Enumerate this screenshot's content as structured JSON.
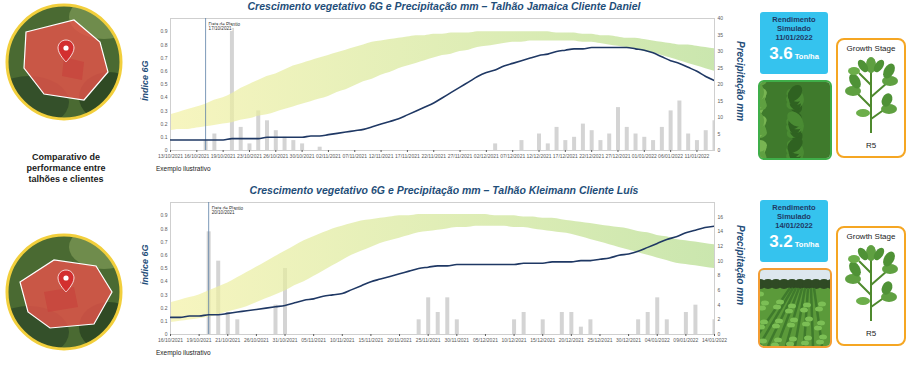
{
  "chart_data": [
    {
      "type": "line",
      "title": "Crescimento vegetativo 6G e Precipitação mm – Talhão Jamaica Cliente Daniel",
      "y_label": "Índice 6G",
      "y2_label": "Precipitação mm",
      "caption": "Exemplo ilustrativo",
      "grid": false,
      "categories": [
        "13/10/2021",
        null,
        null,
        "16/10/2021",
        null,
        null,
        "19/10/2021",
        null,
        null,
        "23/10/2021",
        null,
        null,
        "26/10/2021",
        null,
        null,
        "30/10/2021",
        null,
        null,
        "02/11/2021",
        null,
        null,
        "07/11/2021",
        null,
        null,
        "12/11/2021",
        null,
        null,
        "17/11/2021",
        null,
        null,
        "22/11/2021",
        null,
        null,
        "27/11/2021",
        null,
        null,
        "02/12/2021",
        null,
        null,
        "07/12/2021",
        null,
        null,
        "12/12/2021",
        null,
        null,
        "17/12/2021",
        null,
        null,
        "22/12/2021",
        null,
        null,
        "27/12/2021",
        null,
        null,
        "01/01/2022",
        null,
        null,
        "06/01/2022",
        null,
        null,
        "11/01/2022",
        null,
        null
      ],
      "ylim": [
        0,
        1
      ],
      "yticks": [
        0,
        0.1,
        0.2,
        0.3,
        0.4,
        0.5,
        0.6,
        0.7,
        0.8,
        0.9
      ],
      "y2lim": [
        0,
        40
      ],
      "y2ticks": [
        0,
        5,
        10,
        15,
        20,
        25,
        30,
        35,
        40
      ],
      "annotations": [
        {
          "text": "Data de Plantio",
          "date": "17/10/2021",
          "position": 4
        }
      ],
      "series": [
        {
          "type": "area",
          "color": "#b4dc8c",
          "lower": [
            0.15,
            0.16,
            0.16,
            0.17,
            0.18,
            0.19,
            0.2,
            0.21,
            0.23,
            0.24,
            0.26,
            0.27,
            0.29,
            0.31,
            0.33,
            0.35,
            0.37,
            0.39,
            0.41,
            0.44,
            0.46,
            0.49,
            0.52,
            0.54,
            0.57,
            0.59,
            0.62,
            0.64,
            0.66,
            0.68,
            0.7,
            0.72,
            0.73,
            0.75,
            0.76,
            0.78,
            0.79,
            0.8,
            0.81,
            0.82,
            0.82,
            0.83,
            0.83,
            0.83,
            0.83,
            0.83,
            0.83,
            0.82,
            0.82,
            0.81,
            0.8,
            0.79,
            0.78,
            0.77,
            0.75,
            0.74,
            0.72,
            0.7,
            0.68,
            0.66,
            0.64,
            0.62,
            0.6
          ],
          "upper": [
            0.27,
            0.29,
            0.31,
            0.33,
            0.35,
            0.38,
            0.4,
            0.43,
            0.47,
            0.5,
            0.53,
            0.56,
            0.58,
            0.61,
            0.64,
            0.66,
            0.68,
            0.7,
            0.72,
            0.74,
            0.76,
            0.78,
            0.8,
            0.82,
            0.83,
            0.84,
            0.85,
            0.86,
            0.87,
            0.87,
            0.88,
            0.88,
            0.89,
            0.89,
            0.89,
            0.9,
            0.9,
            0.9,
            0.9,
            0.9,
            0.9,
            0.9,
            0.9,
            0.9,
            0.89,
            0.89,
            0.89,
            0.88,
            0.88,
            0.87,
            0.87,
            0.86,
            0.85,
            0.85,
            0.84,
            0.83,
            0.82,
            0.81,
            0.8,
            0.8,
            0.79,
            0.78,
            0.77
          ]
        },
        {
          "type": "line",
          "color": "#1f3864",
          "values": [
            0.08,
            0.08,
            0.08,
            0.08,
            0.08,
            0.08,
            0.08,
            0.09,
            0.09,
            0.09,
            0.09,
            0.1,
            0.1,
            0.1,
            0.1,
            0.1,
            0.11,
            0.11,
            0.12,
            0.13,
            0.14,
            0.15,
            0.16,
            0.18,
            0.2,
            0.22,
            0.24,
            0.27,
            0.3,
            0.33,
            0.36,
            0.4,
            0.44,
            0.48,
            0.52,
            0.56,
            0.59,
            0.61,
            0.64,
            0.66,
            0.68,
            0.7,
            0.72,
            0.73,
            0.75,
            0.76,
            0.77,
            0.77,
            0.78,
            0.78,
            0.78,
            0.78,
            0.78,
            0.77,
            0.76,
            0.74,
            0.71,
            0.68,
            0.66,
            0.63,
            0.6,
            0.56,
            0.53
          ]
        },
        {
          "type": "bar",
          "axis": "y2",
          "color": "#d4d4d4",
          "values": [
            0,
            0,
            0,
            0,
            3,
            5,
            0,
            37,
            7,
            2,
            12,
            9,
            6,
            4,
            3,
            2,
            0,
            1,
            0,
            0,
            0,
            0,
            0,
            0,
            0,
            0,
            0,
            0,
            0,
            0,
            0,
            0,
            0,
            0,
            0,
            0,
            0,
            2,
            0,
            0,
            3,
            0,
            5,
            2,
            7,
            3,
            4,
            8,
            6,
            3,
            5,
            13,
            7,
            5,
            4,
            3,
            7,
            12,
            15,
            5,
            3,
            6,
            9
          ]
        }
      ]
    },
    {
      "type": "line",
      "title": "Crescimento vegetativo 6G e Precipitação mm – Talhão Kleimann Cliente Luís",
      "y_label": "Índice 6G",
      "y2_label": "Precipitação mm",
      "caption": "Exemplo ilustrativo",
      "grid": false,
      "categories": [
        "16/10/2021",
        null,
        null,
        "19/10/2021",
        null,
        null,
        "21/10/2021",
        null,
        null,
        "26/10/2021",
        null,
        null,
        "31/10/2021",
        null,
        null,
        "05/11/2021",
        null,
        null,
        "10/11/2021",
        null,
        null,
        "15/11/2021",
        null,
        null,
        "20/11/2021",
        null,
        null,
        "25/11/2021",
        null,
        null,
        "30/11/2021",
        null,
        null,
        "05/12/2021",
        null,
        null,
        "10/12/2021",
        null,
        null,
        "15/12/2021",
        null,
        null,
        "20/12/2021",
        null,
        null,
        "25/12/2021",
        null,
        null,
        "30/12/2021",
        null,
        null,
        "04/01/2022",
        null,
        null,
        "09/01/2022",
        null,
        null,
        "14/01/2022"
      ],
      "ylim": [
        0,
        1
      ],
      "yticks": [
        0,
        0.1,
        0.2,
        0.3,
        0.4,
        0.5,
        0.6,
        0.7,
        0.8,
        0.9
      ],
      "y2lim": [
        0,
        18
      ],
      "y2ticks": [
        0,
        2,
        4,
        6,
        8,
        10,
        12,
        14,
        16
      ],
      "annotations": [
        {
          "text": "Data de Plantio",
          "date": "20/10/2021",
          "position": 4
        }
      ],
      "series": [
        {
          "type": "area",
          "color": "#b4dc8c",
          "lower": [
            0.09,
            0.1,
            0.11,
            0.12,
            0.13,
            0.15,
            0.17,
            0.19,
            0.21,
            0.24,
            0.27,
            0.3,
            0.33,
            0.37,
            0.4,
            0.44,
            0.48,
            0.52,
            0.56,
            0.6,
            0.63,
            0.66,
            0.69,
            0.71,
            0.73,
            0.75,
            0.77,
            0.78,
            0.79,
            0.8,
            0.81,
            0.81,
            0.82,
            0.82,
            0.82,
            0.82,
            0.81,
            0.81,
            0.8,
            0.79,
            0.78,
            0.77,
            0.76,
            0.74,
            0.72,
            0.7,
            0.68,
            0.66,
            0.64,
            0.62,
            0.6,
            0.58,
            0.56,
            0.54,
            0.53,
            0.52,
            0.51,
            0.5
          ],
          "upper": [
            0.24,
            0.26,
            0.28,
            0.3,
            0.33,
            0.36,
            0.39,
            0.43,
            0.47,
            0.51,
            0.55,
            0.59,
            0.63,
            0.67,
            0.71,
            0.74,
            0.77,
            0.8,
            0.82,
            0.84,
            0.86,
            0.87,
            0.88,
            0.89,
            0.9,
            0.9,
            0.91,
            0.91,
            0.91,
            0.91,
            0.91,
            0.91,
            0.91,
            0.91,
            0.9,
            0.9,
            0.9,
            0.89,
            0.89,
            0.88,
            0.88,
            0.87,
            0.86,
            0.85,
            0.84,
            0.83,
            0.82,
            0.81,
            0.8,
            0.78,
            0.77,
            0.75,
            0.74,
            0.72,
            0.71,
            0.7,
            0.69,
            0.68
          ]
        },
        {
          "type": "line",
          "color": "#1f3864",
          "values": [
            0.13,
            0.13,
            0.14,
            0.14,
            0.15,
            0.15,
            0.16,
            0.17,
            0.18,
            0.19,
            0.2,
            0.21,
            0.22,
            0.24,
            0.26,
            0.27,
            0.29,
            0.3,
            0.31,
            0.34,
            0.37,
            0.4,
            0.42,
            0.44,
            0.46,
            0.48,
            0.5,
            0.51,
            0.52,
            0.52,
            0.53,
            0.53,
            0.53,
            0.53,
            0.53,
            0.53,
            0.53,
            0.54,
            0.54,
            0.54,
            0.55,
            0.55,
            0.55,
            0.56,
            0.56,
            0.57,
            0.58,
            0.6,
            0.61,
            0.63,
            0.66,
            0.69,
            0.72,
            0.74,
            0.77,
            0.79,
            0.81,
            0.82
          ]
        },
        {
          "type": "bar",
          "axis": "y2",
          "color": "#d4d4d4",
          "values": [
            0,
            0,
            0,
            0,
            14,
            10,
            3,
            2,
            0,
            0,
            0,
            4,
            9,
            0,
            0,
            0,
            0,
            0,
            0,
            0,
            0,
            0,
            0,
            0,
            0,
            0,
            2,
            5,
            3,
            5,
            2,
            0,
            0,
            0,
            0,
            0,
            2,
            3,
            0,
            2,
            0,
            3,
            3,
            1,
            2,
            0,
            0,
            0,
            0,
            2,
            3,
            5,
            2,
            0,
            3,
            4,
            0,
            2
          ]
        }
      ]
    }
  ],
  "sidebar": {
    "text": "Comparativo de performance entre talhões e clientes"
  },
  "panels": [
    {
      "title": "Rendimento Simulado",
      "date": "11/01/2022",
      "value": 3.6,
      "unit": "Ton/ha",
      "color": "#3fae49",
      "stage_title": "Growth Stage",
      "stage": "R5"
    },
    {
      "title": "Rendimento Simulado",
      "date": "14/01/2022",
      "value": 3.2,
      "unit": "Ton/ha",
      "color": "#f39c33",
      "stage_title": "Growth Stage",
      "stage": "R5"
    }
  ]
}
